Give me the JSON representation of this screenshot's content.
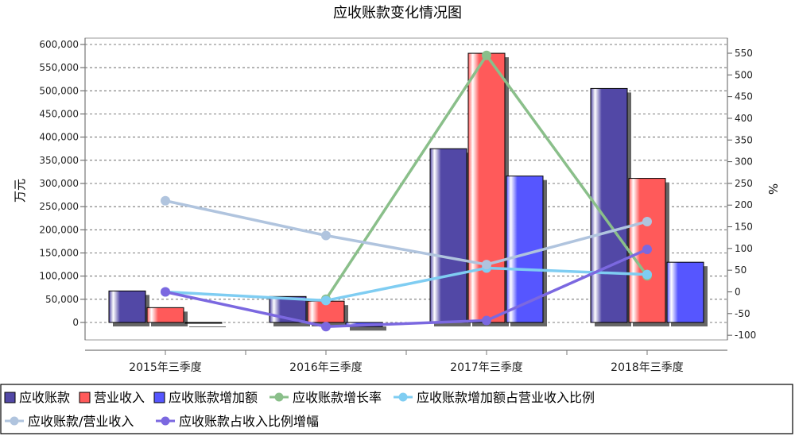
{
  "chart_data": {
    "type": "bar",
    "title": "应收账款变化情况图",
    "ylabel": "万元",
    "y2label": "%",
    "categories": [
      "2015年三季度",
      "2016年三季度",
      "2017年三季度",
      "2018年三季度"
    ],
    "ylim": [
      -40000,
      600000
    ],
    "y_ticks": [
      "0",
      "50,000",
      "100,000",
      "150,000",
      "200,000",
      "250,000",
      "300,000",
      "350,000",
      "400,000",
      "450,000",
      "500,000",
      "550,000",
      "600,000"
    ],
    "y2lim": [
      -100,
      560
    ],
    "y2_ticks": [
      "-100",
      "-50",
      "0",
      "50",
      "100",
      "150",
      "200",
      "250",
      "300",
      "350",
      "400",
      "450",
      "500",
      "550"
    ],
    "grid": true,
    "legend_position": "bottom",
    "bar_series": [
      {
        "name": "应收账款",
        "color": "#5248A6",
        "values": [
          68000,
          56000,
          375000,
          505000
        ]
      },
      {
        "name": "营业收入",
        "color": "#FF5A5A",
        "values": [
          32000,
          46000,
          581000,
          311000
        ]
      },
      {
        "name": "应收账款增加额",
        "color": "#5656FF",
        "values": [
          0,
          -9000,
          316000,
          130000
        ]
      }
    ],
    "line_series": [
      {
        "name": "应收账款增长率",
        "color": "#8ABF8A",
        "values": [
          null,
          -17,
          545,
          37
        ]
      },
      {
        "name": "应收账款增加额占营业收入比例",
        "color": "#7FCDF2",
        "values": [
          0,
          -20,
          55,
          40
        ]
      },
      {
        "name": "应收账款/营业收入",
        "color": "#B0C4DE",
        "values": [
          210,
          130,
          63,
          162
        ]
      },
      {
        "name": "应收账款占收入比例增幅",
        "color": "#7B68E0",
        "values": [
          0,
          -80,
          -66,
          98
        ]
      }
    ]
  }
}
